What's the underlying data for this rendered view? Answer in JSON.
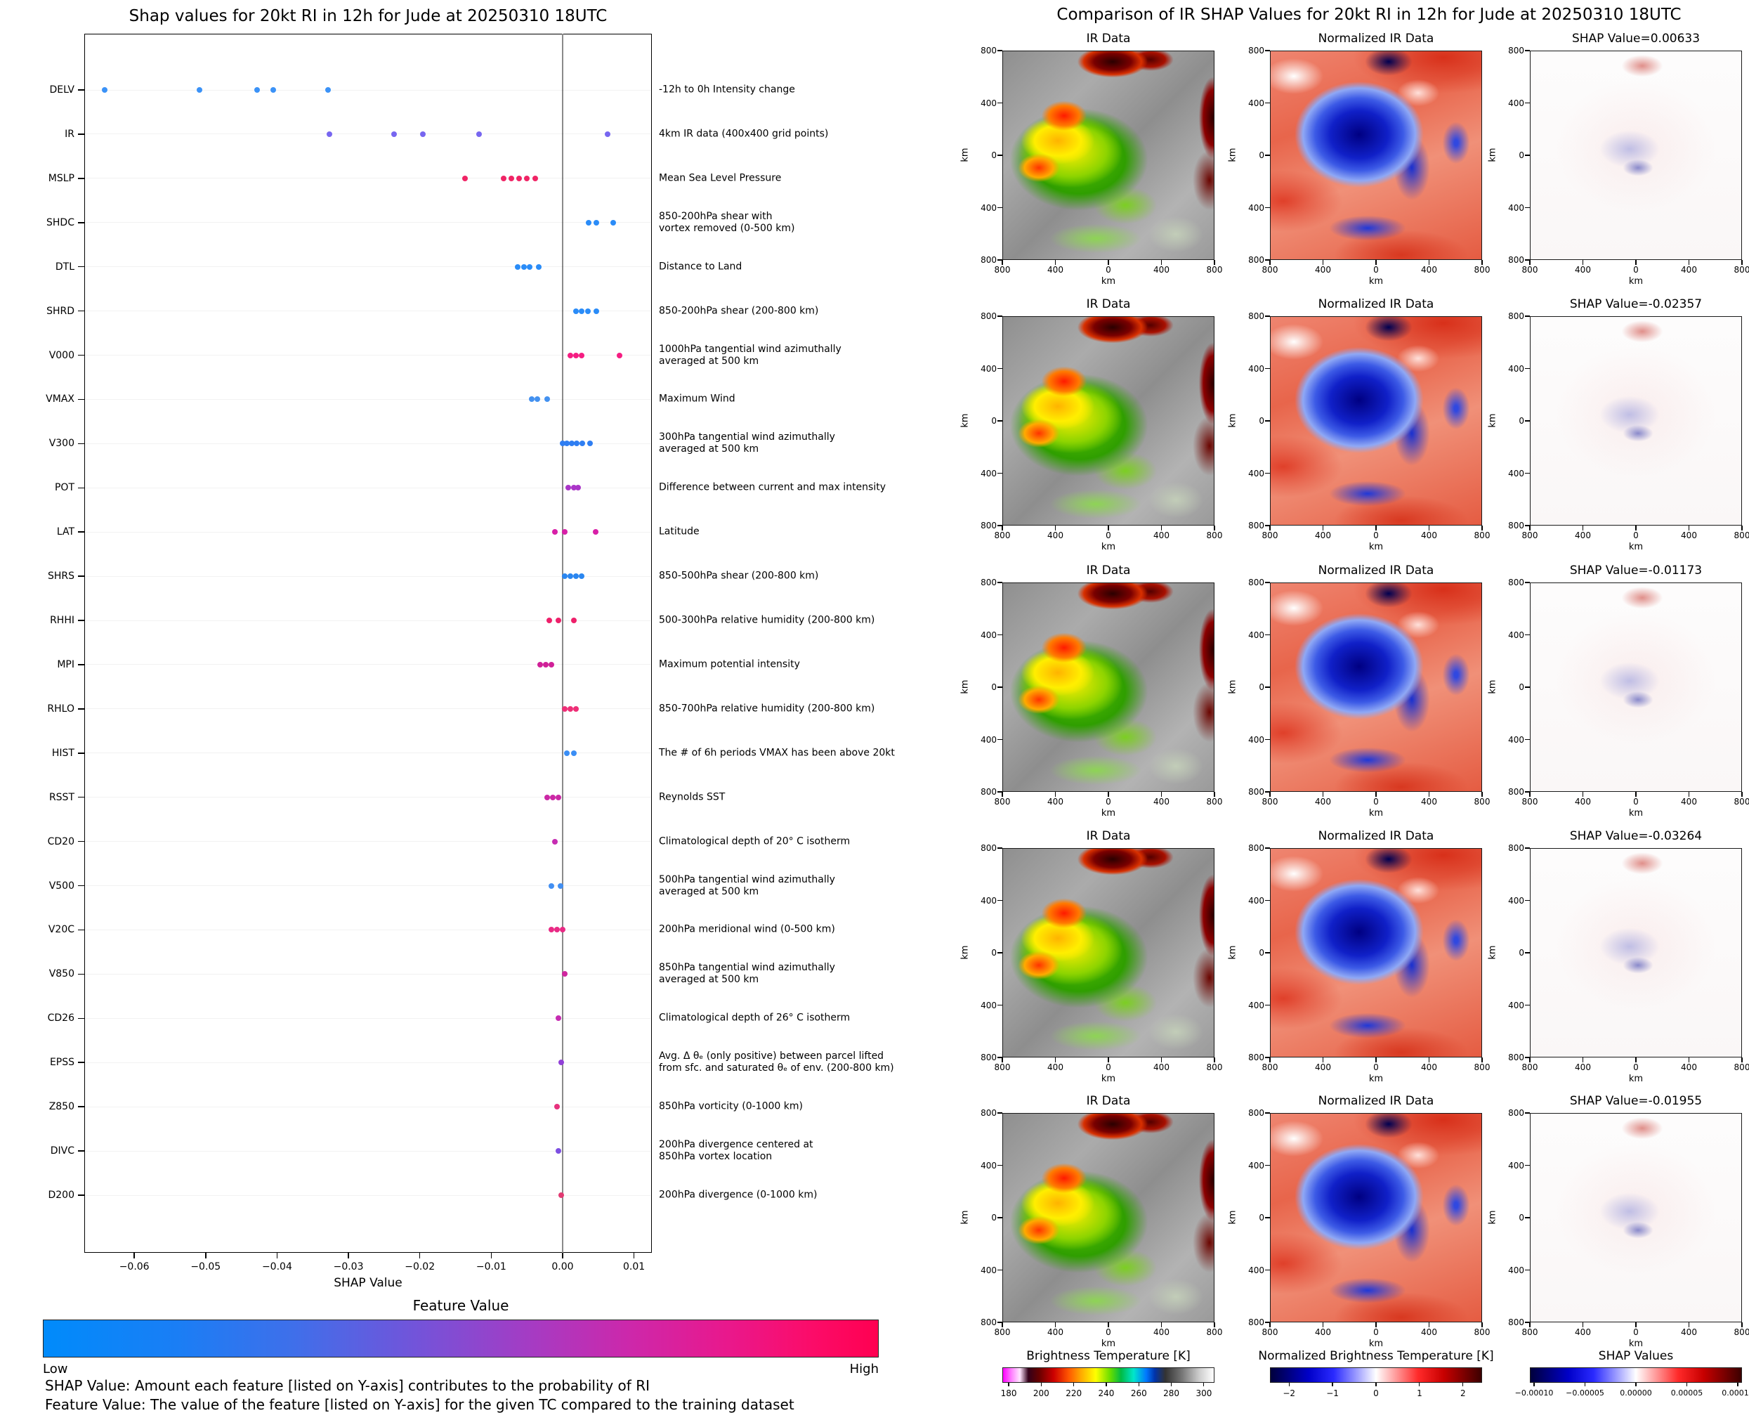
{
  "chart_data": {
    "type": "scatter",
    "title": "Shap values for 20kt RI in 12h for Jude at 20250310 18UTC",
    "xlabel": "SHAP Value",
    "xlim": [
      -0.067,
      0.0125
    ],
    "xticks": [
      -0.06,
      -0.05,
      -0.04,
      -0.03,
      -0.02,
      -0.01,
      0.0,
      0.01
    ],
    "zero_line": 0.0,
    "features": [
      {
        "code": "DELV",
        "desc": "-12h to 0h Intensity change",
        "color": "#3b92f7",
        "x": [
          -0.0641,
          -0.0509,
          -0.0428,
          -0.0405,
          -0.0329
        ]
      },
      {
        "code": "IR",
        "desc": "4km IR data (400x400 grid points)",
        "color": "#7766f0",
        "x": [
          -0.03264,
          -0.02357,
          -0.01955,
          -0.01173,
          0.00633
        ]
      },
      {
        "code": "MSLP",
        "desc": "Mean Sea Level Pressure",
        "color": "#f02465",
        "x": [
          -0.0137,
          -0.0083,
          -0.0072,
          -0.0061,
          -0.005,
          -0.0038
        ]
      },
      {
        "code": "SHDC",
        "desc": "850-200hPa shear with\nvortex removed (0-500 km)",
        "color": "#2a8cf8",
        "x": [
          0.0036,
          0.0047,
          0.0071
        ]
      },
      {
        "code": "DTL",
        "desc": "Distance to Land",
        "color": "#2a8cf8",
        "x": [
          -0.0063,
          -0.0054,
          -0.0046,
          -0.0033
        ]
      },
      {
        "code": "SHRD",
        "desc": "850-200hPa shear (200-800 km)",
        "color": "#2a8cf8",
        "x": [
          0.0019,
          0.0027,
          0.0035,
          0.0047
        ]
      },
      {
        "code": "V000",
        "desc": "1000hPa tangential wind azimuthally\naveraged at 500 km",
        "color": "#f51d82",
        "x": [
          0.0011,
          0.0019,
          0.0027,
          0.008
        ]
      },
      {
        "code": "VMAX",
        "desc": "Maximum Wind",
        "color": "#4391f0",
        "x": [
          -0.0043,
          -0.0035,
          -0.0022
        ]
      },
      {
        "code": "V300",
        "desc": "300hPa tangential wind azimuthally\naveraged at 500 km",
        "color": "#2f7ef2",
        "x": [
          0.0,
          0.0006,
          0.0013,
          0.002,
          0.0028,
          0.0038
        ]
      },
      {
        "code": "POT",
        "desc": "Difference between current and max intensity",
        "color": "#aa35c8",
        "x": [
          0.0008,
          0.0016,
          0.0022
        ]
      },
      {
        "code": "LAT",
        "desc": "Latitude",
        "color": "#d81fa8",
        "x": [
          -0.0011,
          0.0003,
          0.0046
        ]
      },
      {
        "code": "SHRS",
        "desc": "850-500hPa shear (200-800 km)",
        "color": "#2a86f0",
        "x": [
          0.0003,
          0.0011,
          0.0019,
          0.0027
        ]
      },
      {
        "code": "RHHI",
        "desc": "500-300hPa relative humidity (200-800 km)",
        "color": "#ee206a",
        "x": [
          -0.0019,
          -0.0006,
          0.0016
        ]
      },
      {
        "code": "MPI",
        "desc": "Maximum potential intensity",
        "color": "#d02098",
        "x": [
          -0.0031,
          -0.0024,
          -0.0016
        ]
      },
      {
        "code": "RHLO",
        "desc": "850-700hPa relative humidity (200-800 km)",
        "color": "#ee2f77",
        "x": [
          0.0003,
          0.0011,
          0.0019
        ]
      },
      {
        "code": "HIST",
        "desc": "The # of 6h periods VMAX has been above 20kt",
        "color": "#3a8ef5",
        "x": [
          0.0006,
          0.0016
        ]
      },
      {
        "code": "RSST",
        "desc": "Reynolds SST",
        "color": "#cb28a5",
        "x": [
          -0.0022,
          -0.0014,
          -0.0006
        ]
      },
      {
        "code": "CD20",
        "desc": "Climatological depth of 20° C isotherm",
        "color": "#c62cb2",
        "x": [
          -0.0011
        ]
      },
      {
        "code": "V500",
        "desc": "500hPa tangential wind azimuthally\naveraged at 500 km",
        "color": "#428ff2",
        "x": [
          -0.0016,
          -0.0003
        ]
      },
      {
        "code": "V20C",
        "desc": "200hPa meridional wind (0-500 km)",
        "color": "#e92a85",
        "x": [
          -0.0016,
          -0.0008,
          0.0
        ]
      },
      {
        "code": "V850",
        "desc": "850hPa tangential wind azimuthally\naveraged at 500 km",
        "color": "#d0269f",
        "x": [
          0.0003
        ]
      },
      {
        "code": "CD26",
        "desc": "Climatological depth of 26° C isotherm",
        "color": "#c62cb2",
        "x": [
          -0.0006
        ]
      },
      {
        "code": "EPSS",
        "desc": "Avg. Δ θₑ (only positive) between parcel lifted\nfrom sfc. and saturated θₑ of env. (200-800 km)",
        "color": "#9140d8",
        "x": [
          -0.0002
        ]
      },
      {
        "code": "Z850",
        "desc": "850hPa vorticity (0-1000 km)",
        "color": "#e7317d",
        "x": [
          -0.0008
        ]
      },
      {
        "code": "DIVC",
        "desc": "200hPa divergence centered at\n850hPa vortex location",
        "color": "#7d4fe2",
        "x": [
          -0.0006
        ]
      },
      {
        "code": "D200",
        "desc": "200hPa divergence (0-1000 km)",
        "color": "#e23a72",
        "x": [
          -0.0002
        ]
      }
    ],
    "feature_colorbar": {
      "title": "Feature Value",
      "low_label": "Low",
      "high_label": "High",
      "low_color": "#008bfb",
      "high_color": "#ff0051"
    }
  },
  "comparison": {
    "title": "Comparison of IR SHAP Values for 20kt RI in 12h for Jude at 20250310 18UTC",
    "axis_label": "km",
    "y_ticks": [
      "800",
      "400",
      "0",
      "400",
      "800"
    ],
    "x_ticks": [
      "800",
      "400",
      "0",
      "400",
      "800"
    ],
    "rows": [
      {
        "panels": [
          {
            "title": "IR Data",
            "style": "ir"
          },
          {
            "title": "Normalized IR Data",
            "style": "norm"
          },
          {
            "title": "SHAP Value=0.00633",
            "style": "shap"
          }
        ]
      },
      {
        "panels": [
          {
            "title": "IR Data",
            "style": "ir"
          },
          {
            "title": "Normalized IR Data",
            "style": "norm"
          },
          {
            "title": "SHAP Value=-0.02357",
            "style": "shap"
          }
        ]
      },
      {
        "panels": [
          {
            "title": "IR Data",
            "style": "ir"
          },
          {
            "title": "Normalized IR Data",
            "style": "norm"
          },
          {
            "title": "SHAP Value=-0.01173",
            "style": "shap"
          }
        ]
      },
      {
        "panels": [
          {
            "title": "IR Data",
            "style": "ir"
          },
          {
            "title": "Normalized IR Data",
            "style": "norm"
          },
          {
            "title": "SHAP Value=-0.03264",
            "style": "shap"
          }
        ]
      },
      {
        "panels": [
          {
            "title": "IR Data",
            "style": "ir"
          },
          {
            "title": "Normalized IR Data",
            "style": "norm"
          },
          {
            "title": "SHAP Value=-0.01955",
            "style": "shap"
          }
        ]
      }
    ],
    "colorbars": [
      {
        "title": "Brightness Temperature [K]",
        "style": "ir",
        "ticks": [
          "180",
          "200",
          "220",
          "240",
          "260",
          "280",
          "300"
        ],
        "range": [
          0.03,
          0.95
        ]
      },
      {
        "title": "Normalized Brightness Temperature [K]",
        "style": "seismic",
        "ticks": [
          "−2",
          "−1",
          "0",
          "1",
          "2"
        ],
        "range": [
          0.09,
          0.91
        ]
      },
      {
        "title": "SHAP Values",
        "style": "seismic",
        "ticks": [
          "−0.00010",
          "−0.00005",
          "0.00000",
          "0.00005",
          "0.00010"
        ],
        "range": [
          0.02,
          0.98
        ]
      }
    ]
  },
  "footnotes": {
    "shap_line": "SHAP Value: Amount each feature [listed on Y-axis] contributes to the probability of RI",
    "feature_line": "Feature Value: The value of the feature [listed on Y-axis] for the given TC compared to the training dataset"
  }
}
